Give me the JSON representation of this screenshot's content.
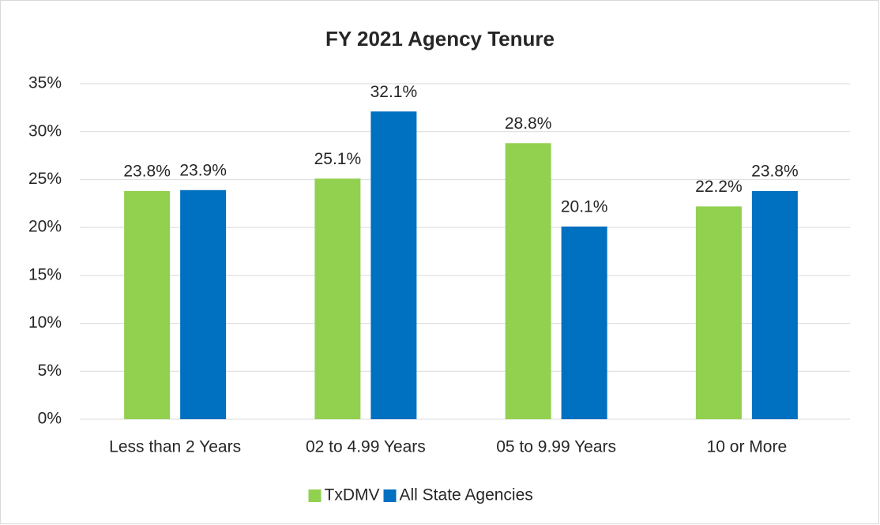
{
  "chart_data": {
    "type": "bar",
    "title": "FY 2021 Agency Tenure",
    "categories": [
      "Less than 2 Years",
      "02 to 4.99 Years",
      "05 to 9.99 Years",
      "10 or More"
    ],
    "series": [
      {
        "name": "TxDMV",
        "color": "#92d050",
        "values": [
          23.8,
          25.1,
          28.8,
          22.2
        ],
        "value_labels": [
          "23.8%",
          "25.1%",
          "28.8%",
          "22.2%"
        ]
      },
      {
        "name": "All State Agencies",
        "color": "#0070c0",
        "values": [
          23.9,
          32.1,
          20.1,
          23.8
        ],
        "value_labels": [
          "23.9%",
          "32.1%",
          "20.1%",
          "23.8%"
        ]
      }
    ],
    "ylim": [
      0,
      35
    ],
    "yticks": [
      {
        "value": 0,
        "label": "0%"
      },
      {
        "value": 5,
        "label": "5%"
      },
      {
        "value": 10,
        "label": "10%"
      },
      {
        "value": 15,
        "label": "15%"
      },
      {
        "value": 20,
        "label": "20%"
      },
      {
        "value": 25,
        "label": "25%"
      },
      {
        "value": 30,
        "label": "30%"
      },
      {
        "value": 35,
        "label": "35%"
      }
    ],
    "grid": true,
    "legend": "bottom"
  }
}
